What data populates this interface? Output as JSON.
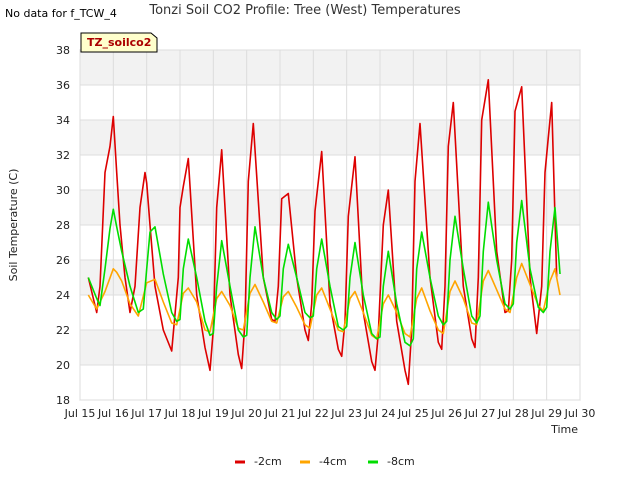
{
  "header": {
    "no_data_text": "No data for f_TCW_4",
    "title": "Tonzi Soil CO2 Profile: Tree (West) Temperatures"
  },
  "chart_data": {
    "type": "line",
    "title": "Tonzi Soil CO2 Profile: Tree (West) Temperatures",
    "xlabel": "Time",
    "ylabel": "Soil Temperature (C)",
    "badge": "TZ_soilco2",
    "xlim": [
      15,
      30
    ],
    "ylim": [
      18,
      38
    ],
    "x_ticks": [
      15,
      16,
      17,
      18,
      19,
      20,
      21,
      22,
      23,
      24,
      25,
      26,
      27,
      28,
      29,
      30
    ],
    "x_tick_labels": [
      "Jul 15",
      "Jul 16",
      "Jul 17",
      "Jul 18",
      "Jul 19",
      "Jul 20",
      "Jul 21",
      "Jul 22",
      "Jul 23",
      "Jul 24",
      "Jul 25",
      "Jul 26",
      "Jul 27",
      "Jul 28",
      "Jul 29",
      "Jul 30"
    ],
    "y_ticks": [
      18,
      20,
      22,
      24,
      26,
      28,
      30,
      32,
      34,
      36,
      38
    ],
    "grid": true,
    "legend_position": "bottom",
    "series": [
      {
        "name": "-2cm",
        "color": "#dd0000",
        "x": [
          15.25,
          15.5,
          15.6,
          15.75,
          15.9,
          16.0,
          16.1,
          16.2,
          16.35,
          16.5,
          16.65,
          16.8,
          16.95,
          17.0,
          17.1,
          17.25,
          17.5,
          17.75,
          17.95,
          18.0,
          18.1,
          18.25,
          18.5,
          18.75,
          18.9,
          19.0,
          19.1,
          19.25,
          19.5,
          19.75,
          19.85,
          19.95,
          20.05,
          20.2,
          20.5,
          20.75,
          20.85,
          20.95,
          21.05,
          21.25,
          21.5,
          21.75,
          21.85,
          21.95,
          22.05,
          22.25,
          22.5,
          22.75,
          22.85,
          22.95,
          23.05,
          23.25,
          23.5,
          23.75,
          23.85,
          23.95,
          24.1,
          24.25,
          24.5,
          24.75,
          24.85,
          24.95,
          25.05,
          25.2,
          25.5,
          25.75,
          25.85,
          25.95,
          26.05,
          26.2,
          26.5,
          26.75,
          26.85,
          26.95,
          27.05,
          27.25,
          27.5,
          27.75,
          27.85,
          27.95,
          28.05,
          28.25,
          28.5,
          28.7,
          28.85,
          28.95,
          29.05,
          29.15,
          29.3
        ],
        "values": [
          25.0,
          23.0,
          24.5,
          31.0,
          32.5,
          34.2,
          31.0,
          28.0,
          25.0,
          23.0,
          24.5,
          29.0,
          31.0,
          30.4,
          28.0,
          24.5,
          22.0,
          20.8,
          25.0,
          29.0,
          30.2,
          31.8,
          24.0,
          21.0,
          19.7,
          22.0,
          29.0,
          32.3,
          24.0,
          20.6,
          19.8,
          22.5,
          30.5,
          33.8,
          25.0,
          22.6,
          22.5,
          24.5,
          29.5,
          29.8,
          25.0,
          22.0,
          21.4,
          23.5,
          28.8,
          32.2,
          23.5,
          20.9,
          20.5,
          22.5,
          28.5,
          31.9,
          23.0,
          20.2,
          19.7,
          21.8,
          28.0,
          30.0,
          22.5,
          19.7,
          18.9,
          22.0,
          30.5,
          33.8,
          25.0,
          21.3,
          20.9,
          24.5,
          32.5,
          35.0,
          24.5,
          21.5,
          21.0,
          25.0,
          34.0,
          36.3,
          26.5,
          23.0,
          23.1,
          26.0,
          34.5,
          35.9,
          25.0,
          21.8,
          24.5,
          31.0,
          33.0,
          35.0,
          25.0
        ]
      },
      {
        "name": "-4cm",
        "color": "#ffa500",
        "x": [
          15.25,
          15.5,
          15.75,
          16.0,
          16.1,
          16.25,
          16.5,
          16.75,
          17.0,
          17.25,
          17.5,
          17.75,
          17.9,
          18.1,
          18.25,
          18.5,
          18.75,
          18.9,
          19.1,
          19.25,
          19.5,
          19.75,
          19.9,
          20.1,
          20.25,
          20.5,
          20.75,
          20.9,
          21.1,
          21.25,
          21.5,
          21.75,
          21.9,
          22.1,
          22.25,
          22.5,
          22.75,
          22.9,
          23.1,
          23.25,
          23.5,
          23.75,
          23.9,
          24.1,
          24.25,
          24.5,
          24.75,
          24.9,
          25.1,
          25.25,
          25.5,
          25.75,
          25.9,
          26.1,
          26.25,
          26.5,
          26.75,
          26.9,
          27.1,
          27.25,
          27.5,
          27.75,
          27.9,
          28.1,
          28.25,
          28.5,
          28.75,
          28.9,
          29.1,
          29.25,
          29.4
        ],
        "values": [
          24.0,
          23.2,
          24.2,
          25.5,
          25.3,
          24.8,
          23.5,
          22.8,
          24.7,
          24.9,
          23.6,
          22.4,
          22.3,
          24.1,
          24.4,
          23.6,
          22.0,
          21.9,
          23.8,
          24.2,
          23.4,
          22.1,
          22.0,
          24.1,
          24.6,
          23.6,
          22.5,
          22.4,
          23.9,
          24.2,
          23.3,
          22.3,
          22.1,
          24.0,
          24.4,
          23.2,
          22.0,
          21.9,
          23.8,
          24.2,
          23.0,
          21.7,
          21.5,
          23.5,
          24.0,
          23.0,
          21.8,
          21.6,
          23.8,
          24.4,
          23.1,
          22.0,
          21.8,
          24.2,
          24.8,
          23.8,
          22.4,
          22.3,
          24.8,
          25.4,
          24.3,
          23.2,
          23.0,
          25.0,
          25.8,
          24.6,
          23.4,
          23.1,
          24.8,
          25.5,
          24.0
        ]
      },
      {
        "name": "-8cm",
        "color": "#00dd00",
        "x": [
          15.25,
          15.5,
          15.6,
          15.75,
          15.9,
          16.0,
          16.1,
          16.25,
          16.5,
          16.75,
          16.9,
          17.0,
          17.1,
          17.25,
          17.5,
          17.75,
          17.9,
          18.0,
          18.1,
          18.25,
          18.5,
          18.75,
          18.9,
          19.0,
          19.1,
          19.25,
          19.5,
          19.75,
          19.9,
          20.0,
          20.1,
          20.25,
          20.5,
          20.75,
          20.9,
          21.0,
          21.1,
          21.25,
          21.5,
          21.75,
          21.9,
          22.0,
          22.1,
          22.25,
          22.5,
          22.75,
          22.9,
          23.0,
          23.1,
          23.25,
          23.5,
          23.75,
          23.9,
          24.0,
          24.1,
          24.25,
          24.5,
          24.75,
          24.9,
          25.0,
          25.1,
          25.25,
          25.5,
          25.75,
          25.9,
          26.0,
          26.1,
          26.25,
          26.5,
          26.75,
          26.9,
          27.0,
          27.1,
          27.25,
          27.5,
          27.75,
          27.9,
          28.0,
          28.1,
          28.25,
          28.5,
          28.75,
          28.9,
          29.0,
          29.1,
          29.25,
          29.4
        ],
        "values": [
          25.0,
          23.8,
          23.4,
          25.5,
          27.8,
          28.9,
          27.9,
          26.5,
          24.5,
          23.0,
          23.2,
          25.5,
          27.6,
          27.9,
          25.2,
          23.0,
          22.5,
          22.6,
          25.5,
          27.2,
          25.0,
          22.5,
          21.7,
          21.8,
          24.5,
          27.1,
          24.5,
          22.0,
          21.6,
          21.7,
          25.0,
          27.9,
          25.0,
          23.0,
          22.6,
          22.8,
          25.5,
          26.9,
          25.0,
          23.0,
          22.7,
          22.8,
          25.5,
          27.2,
          24.5,
          22.2,
          22.0,
          22.2,
          25.0,
          27.0,
          24.0,
          21.8,
          21.5,
          21.6,
          24.5,
          26.5,
          23.5,
          21.3,
          21.1,
          21.5,
          25.5,
          27.6,
          25.0,
          22.8,
          22.3,
          22.5,
          26.0,
          28.5,
          25.5,
          22.8,
          22.4,
          22.8,
          26.5,
          29.3,
          26.0,
          23.5,
          23.2,
          23.5,
          27.0,
          29.4,
          25.5,
          23.3,
          23.0,
          23.3,
          26.5,
          29.0,
          25.2
        ]
      }
    ]
  }
}
